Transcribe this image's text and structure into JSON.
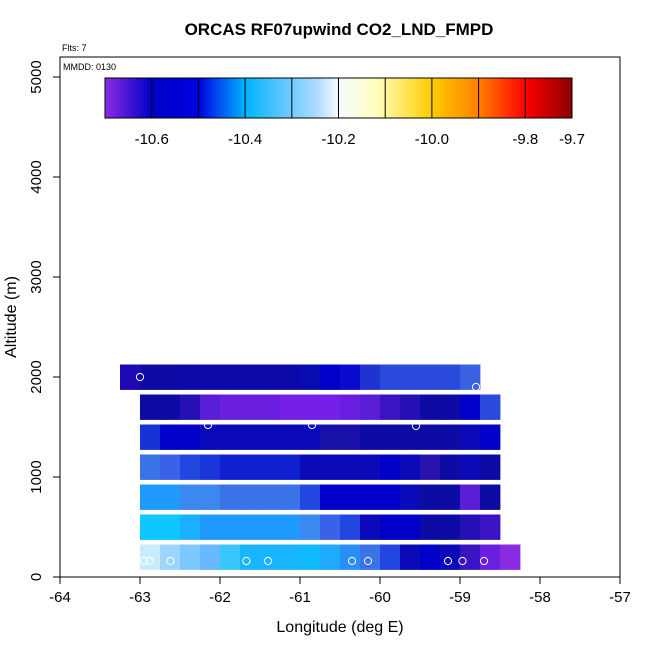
{
  "chart_data": {
    "type": "heatmap",
    "title": "ORCAS RF07upwind CO2_LND_FMPD",
    "xlabel": "Longitude (deg E)",
    "ylabel": "Altitude (m)",
    "xlim": [
      -64,
      -57
    ],
    "ylim": [
      0,
      5200
    ],
    "x_ticks": [
      -64,
      -63,
      -62,
      -61,
      -60,
      -59,
      -58,
      -57
    ],
    "x_tick_labels": [
      "-64",
      "-63",
      "-62",
      "-61",
      "-60",
      "-59",
      "-58",
      "-57"
    ],
    "y_ticks": [
      0,
      1000,
      2000,
      3000,
      4000,
      5000
    ],
    "y_tick_labels": [
      "0",
      "1000",
      "2000",
      "3000",
      "4000",
      "5000"
    ],
    "annotations": {
      "flights": "Flts: 7",
      "mmdd": "MMDD: 0130"
    },
    "colorbar": {
      "min": -10.7,
      "max": -9.7,
      "ticks": [
        -10.6,
        -10.4,
        -10.2,
        -10.0,
        -9.8,
        -9.7
      ],
      "tick_labels": [
        "-10.6",
        "-10.4",
        "-10.2",
        "-10.0",
        "-9.8",
        "-9.7"
      ],
      "divider_values": [
        -10.6,
        -10.5,
        -10.4,
        -10.3,
        -10.2,
        -10.1,
        -10.0,
        -9.9,
        -9.8
      ],
      "gradient_stops": [
        {
          "v": -10.7,
          "color": "#8a2be2"
        },
        {
          "v": -10.6,
          "color": "#0000c8"
        },
        {
          "v": -10.5,
          "color": "#0000e0"
        },
        {
          "v": -10.4,
          "color": "#00b4ff"
        },
        {
          "v": -10.25,
          "color": "#aad8ff"
        },
        {
          "v": -10.2,
          "color": "#f4fcff"
        },
        {
          "v": -10.12,
          "color": "#ffffc0"
        },
        {
          "v": -10.0,
          "color": "#ffcc00"
        },
        {
          "v": -9.9,
          "color": "#ff8000"
        },
        {
          "v": -9.8,
          "color": "#ff0000"
        },
        {
          "v": -9.7,
          "color": "#8b0000"
        }
      ]
    },
    "grid": {
      "x_edges": [
        -63.25,
        -63.0,
        -62.75,
        -62.5,
        -62.25,
        -62.0,
        -61.75,
        -61.5,
        -61.25,
        -61.0,
        -60.75,
        -60.5,
        -60.25,
        -60.0,
        -59.75,
        -59.5,
        -59.25,
        -59.0,
        -58.75,
        -58.5
      ],
      "row_centers": [
        2000,
        1700,
        1400,
        1100,
        800,
        500,
        200
      ],
      "row_height": 250,
      "rows": [
        {
          "alt": 2000,
          "start": -63.25,
          "colors": [
            "#1d0ab5",
            "#0d0ba3",
            "#0d0ba3",
            "#0b0aa8",
            "#0b0aa8",
            "#0b0aa8",
            "#0b0aa8",
            "#0b0aa8",
            "#0b0aa8",
            "#0a0cb3",
            "#0000c8",
            "#0a0ad1",
            "#1f33d1",
            "#2a4adb",
            "#2a4adb",
            "#2a4adb",
            "#2a4adb",
            "#3b61e3"
          ]
        },
        {
          "alt": 1700,
          "start": -63.0,
          "colors": [
            "#0d0ba3",
            "#0d0ba3",
            "#2410b5",
            "#5a1dd6",
            "#6a1fe0",
            "#6a1fe0",
            "#6a1fe0",
            "#7420e8",
            "#7420e8",
            "#7420e8",
            "#6a1fe0",
            "#5a1dd6",
            "#3a14c2",
            "#2410b5",
            "#0d0ba3",
            "#0d0ba3",
            "#0000c8",
            "#2a4adb"
          ]
        },
        {
          "alt": 1400,
          "start": -63.0,
          "colors": [
            "#1733d6",
            "#0000c8",
            "#0000c8",
            "#0a0ab8",
            "#0a0ab8",
            "#0a0ab8",
            "#0a0ab8",
            "#0a0ab8",
            "#0a0ab8",
            "#1810a8",
            "#1810a8",
            "#0d0ba3",
            "#0d0ba3",
            "#0d0ba3",
            "#0d0ba3",
            "#0d0ba3",
            "#0a0ab8",
            "#0000c8"
          ]
        },
        {
          "alt": 1100,
          "start": -63.0,
          "colors": [
            "#3a72e8",
            "#3a62e8",
            "#2247e0",
            "#1a36d8",
            "#1020d0",
            "#1020d0",
            "#1020d0",
            "#1020d0",
            "#0a0ab8",
            "#0a0ab8",
            "#0a0ab8",
            "#0a0ab8",
            "#0000c8",
            "#0a0ab8",
            "#2a14b0",
            "#0d0ba3",
            "#0a0ab8",
            "#0d0ba3"
          ]
        },
        {
          "alt": 800,
          "start": -63.0,
          "colors": [
            "#1f9bff",
            "#1f9bff",
            "#3a88f0",
            "#3a88f0",
            "#3a72e8",
            "#3a72e8",
            "#3a72e8",
            "#3a72e8",
            "#2247e0",
            "#0000c8",
            "#0000c8",
            "#0000c8",
            "#0000c8",
            "#0a0ab8",
            "#0d0ba3",
            "#0d0ba3",
            "#5a1dd6",
            "#0d0ba3"
          ]
        },
        {
          "alt": 500,
          "start": -63.0,
          "colors": [
            "#0fc6ff",
            "#0fc6ff",
            "#1ab0ff",
            "#1f9bff",
            "#1f9bff",
            "#1f9bff",
            "#1f9bff",
            "#1f9bff",
            "#3a88f0",
            "#3a62e8",
            "#2247e0",
            "#0a0ab8",
            "#0000c8",
            "#0000c8",
            "#0d0ba3",
            "#0d0ba3",
            "#2410b5",
            "#3a14c2"
          ]
        },
        {
          "alt": 200,
          "start": -63.0,
          "colors": [
            "#c8ecff",
            "#9cd6ff",
            "#7cc8ff",
            "#6ab8ff",
            "#3ac6ff",
            "#19b6ff",
            "#19b6ff",
            "#19b6ff",
            "#11b9ff",
            "#1fa9ff",
            "#2a8ff5",
            "#3a72e8",
            "#2247e0",
            "#0a0ab8",
            "#0000c8",
            "#0a0ab8",
            "#3a14c2",
            "#6a1fe0",
            "#8a2be2"
          ]
        }
      ]
    },
    "points": [
      {
        "lon": -63.0,
        "alt": 2000
      },
      {
        "lon": -58.8,
        "alt": 1900
      },
      {
        "lon": -62.15,
        "alt": 1520
      },
      {
        "lon": -60.85,
        "alt": 1520
      },
      {
        "lon": -59.55,
        "alt": 1510
      },
      {
        "lon": -62.95,
        "alt": 160
      },
      {
        "lon": -62.88,
        "alt": 160
      },
      {
        "lon": -62.62,
        "alt": 160
      },
      {
        "lon": -61.67,
        "alt": 160
      },
      {
        "lon": -61.4,
        "alt": 160
      },
      {
        "lon": -60.35,
        "alt": 160
      },
      {
        "lon": -60.15,
        "alt": 160
      },
      {
        "lon": -59.15,
        "alt": 160
      },
      {
        "lon": -58.97,
        "alt": 160
      },
      {
        "lon": -58.7,
        "alt": 160
      }
    ]
  }
}
